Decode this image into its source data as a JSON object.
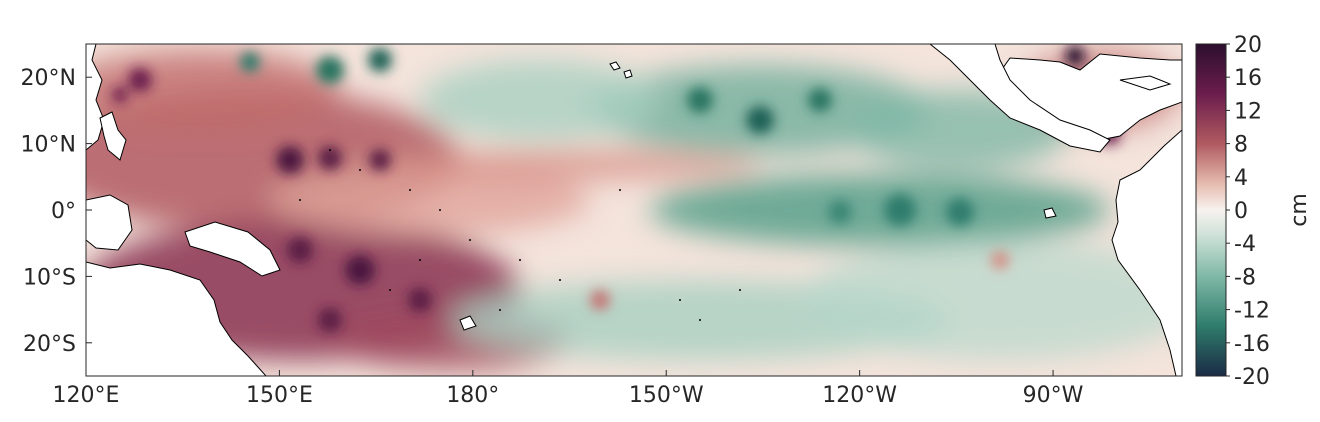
{
  "map": {
    "lon_min": 120,
    "lon_max": 290,
    "lat_min": -25,
    "lat_max": 25,
    "x_ticks": [
      {
        "lon": 120,
        "label": "120°E"
      },
      {
        "lon": 150,
        "label": "150°E"
      },
      {
        "lon": 180,
        "label": "180°"
      },
      {
        "lon": 210,
        "label": "150°W"
      },
      {
        "lon": 240,
        "label": "120°W"
      },
      {
        "lon": 270,
        "label": "90°W"
      }
    ],
    "y_ticks": [
      {
        "lat": 20,
        "label": "20°N"
      },
      {
        "lat": 10,
        "label": "10°N"
      },
      {
        "lat": 0,
        "label": "0°"
      },
      {
        "lat": -10,
        "label": "10°S"
      },
      {
        "lat": -20,
        "label": "20°S"
      }
    ],
    "field_description_regions": {
      "positive_color": "#6b1d4d",
      "neutral_color": "#f7f2ef",
      "negative_color": "#27735f"
    }
  },
  "colorbar": {
    "unit": "cm",
    "min": -20,
    "max": 20,
    "ticks": [
      20,
      16,
      12,
      8,
      4,
      0,
      -4,
      -8,
      -12,
      -16,
      -20
    ],
    "tick_labels": [
      "20",
      "16",
      "12",
      "8",
      "4",
      "0",
      "-4",
      "-8",
      "-12",
      "-16",
      "-20"
    ],
    "stops": [
      {
        "value": 20,
        "color": "#2c0f2e"
      },
      {
        "value": 14,
        "color": "#6b1d4d"
      },
      {
        "value": 8,
        "color": "#b05a60"
      },
      {
        "value": 3,
        "color": "#e7bfb2"
      },
      {
        "value": 0,
        "color": "#f7f2ef"
      },
      {
        "value": -3,
        "color": "#cfe2d9"
      },
      {
        "value": -8,
        "color": "#7fb8a6"
      },
      {
        "value": -14,
        "color": "#2f7c6c"
      },
      {
        "value": -20,
        "color": "#1a2b45"
      }
    ]
  }
}
